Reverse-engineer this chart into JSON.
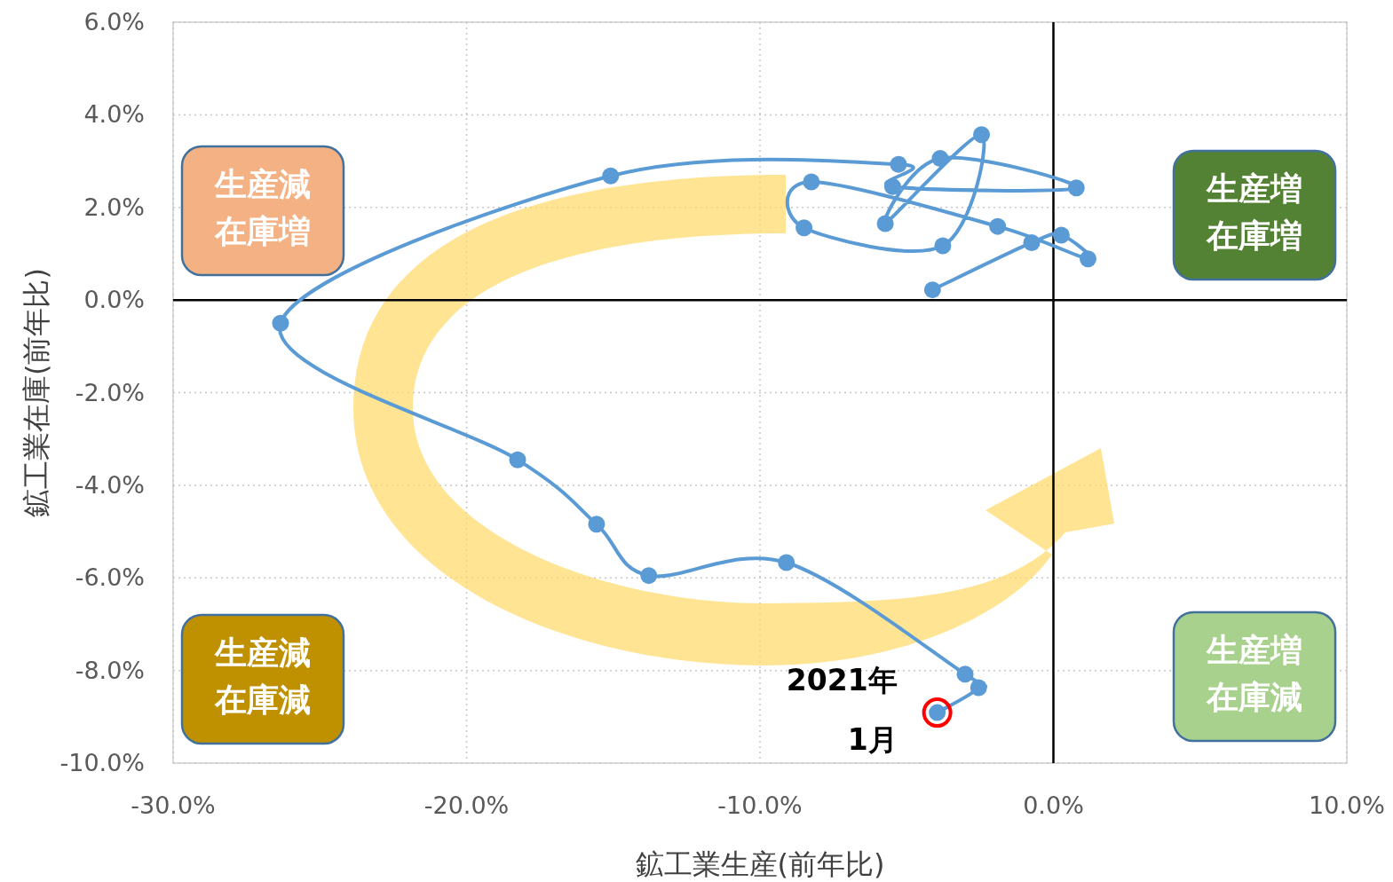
{
  "chart_data": {
    "type": "line",
    "xlabel": "鉱工業生産(前年比)",
    "ylabel": "鉱工業在庫(前年比)",
    "x": [
      -4.12,
      -0.74,
      0.27,
      1.18,
      -1.9,
      -8.25,
      -8.5,
      -3.77,
      -2.45,
      -5.73,
      -3.86,
      0.78,
      -5.48,
      -5.28,
      -15.09,
      -26.34,
      -18.26,
      -15.57,
      -13.79,
      -9.1,
      -3.01,
      -2.55,
      -3.96
    ],
    "series": [
      {
        "color": "#5b9bd5",
        "values": [
          0.22,
          1.24,
          1.4,
          0.89,
          1.59,
          2.55,
          1.56,
          1.17,
          3.57,
          1.65,
          3.06,
          2.42,
          2.45,
          2.93,
          2.68,
          -0.5,
          -3.45,
          -4.84,
          -5.95,
          -5.67,
          -8.08,
          -8.37,
          -8.91
        ]
      }
    ],
    "xlim": [
      -30,
      10
    ],
    "xticks": [
      {
        "value": -30,
        "label": "-30.0%"
      },
      {
        "value": -20,
        "label": "-20.0%"
      },
      {
        "value": -10,
        "label": "-10.0%"
      },
      {
        "value": 0,
        "label": "0.0%"
      },
      {
        "value": 10,
        "label": "10.0%"
      }
    ],
    "ylim": [
      -10,
      6
    ],
    "yticks": [
      {
        "value": -10,
        "label": "-10.0%"
      },
      {
        "value": -8,
        "label": "-8.0%"
      },
      {
        "value": -6,
        "label": "-6.0%"
      },
      {
        "value": -4,
        "label": "-4.0%"
      },
      {
        "value": -2,
        "label": "-2.0%"
      },
      {
        "value": 0,
        "label": "0.0%"
      },
      {
        "value": 2,
        "label": "2.0%"
      },
      {
        "value": 4,
        "label": "4.0%"
      },
      {
        "value": 6,
        "label": "6.0%"
      }
    ],
    "grid": true,
    "marker": "circle",
    "line_style": "solid",
    "annotations": [
      "生産減在庫増",
      "生産増在庫増",
      "生産減在庫減",
      "生産増在庫減",
      {
        "text": "2021年\n1月",
        "x": -3.96,
        "y": -8.91
      }
    ]
  }
}
